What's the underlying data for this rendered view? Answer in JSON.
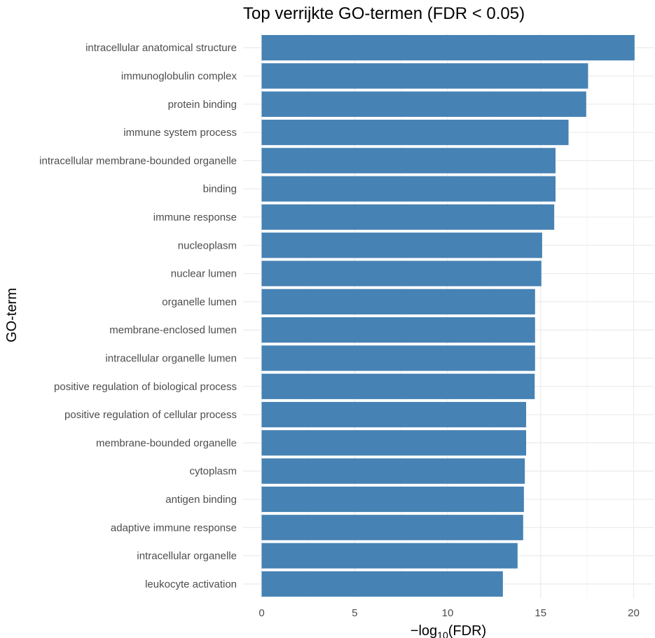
{
  "chart_data": {
    "type": "bar",
    "orientation": "horizontal",
    "title": "Top verrijkte GO-termen (FDR < 0.05)",
    "xlabel": "-log10(FDR)",
    "ylabel": "GO-term",
    "xlim": [
      0,
      21
    ],
    "xticks": [
      0,
      5,
      10,
      15,
      20
    ],
    "grid": true,
    "bar_color": "#4682b4",
    "categories": [
      "intracellular anatomical structure",
      "immunoglobulin complex",
      "protein binding",
      "immune system process",
      "intracellular membrane-bounded organelle",
      "binding",
      "immune response",
      "nucleoplasm",
      "nuclear lumen",
      "organelle lumen",
      "membrane-enclosed lumen",
      "intracellular organelle lumen",
      "positive regulation of biological process",
      "positive regulation of cellular process",
      "membrane-bounded organelle",
      "cytoplasm",
      "antigen binding",
      "adaptive immune response",
      "intracellular organelle",
      "leukocyte activation"
    ],
    "values": [
      20.05,
      17.55,
      17.45,
      16.5,
      15.8,
      15.8,
      15.73,
      15.08,
      15.04,
      14.7,
      14.7,
      14.7,
      14.68,
      14.22,
      14.22,
      14.15,
      14.1,
      14.06,
      13.76,
      12.97
    ]
  }
}
